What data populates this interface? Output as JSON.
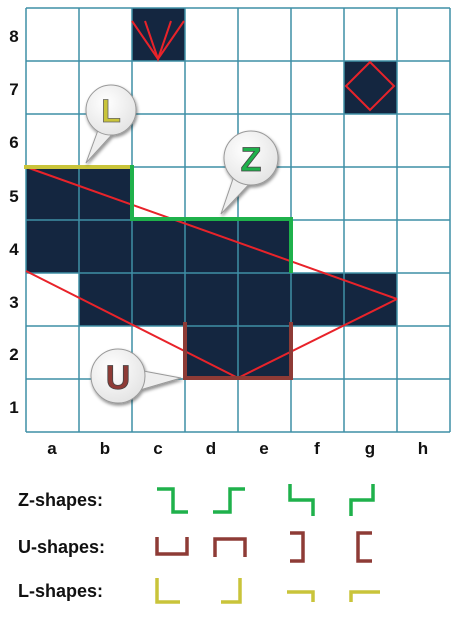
{
  "board": {
    "columns": [
      "a",
      "b",
      "c",
      "d",
      "e",
      "f",
      "g",
      "h"
    ],
    "rows": [
      "8",
      "7",
      "6",
      "5",
      "4",
      "3",
      "2",
      "1"
    ],
    "filled_cells": [
      "c8",
      "g7",
      "a5",
      "b5",
      "a4",
      "b4",
      "c4",
      "d4",
      "e4",
      "b3",
      "c3",
      "d3",
      "e3",
      "f3",
      "g3",
      "d2",
      "e2"
    ],
    "colors": {
      "cell_fill": "#142640",
      "grid_line": "#3f8fa6",
      "red_line": "#e8232a",
      "z_color": "#1fb14b",
      "u_color": "#8e3b36",
      "l_color": "#c9c43a"
    }
  },
  "callouts": {
    "l": "L",
    "z": "Z",
    "u": "U"
  },
  "legend": {
    "z_label": "Z-shapes:",
    "u_label": "U-shapes:",
    "l_label": "L-shapes:"
  }
}
